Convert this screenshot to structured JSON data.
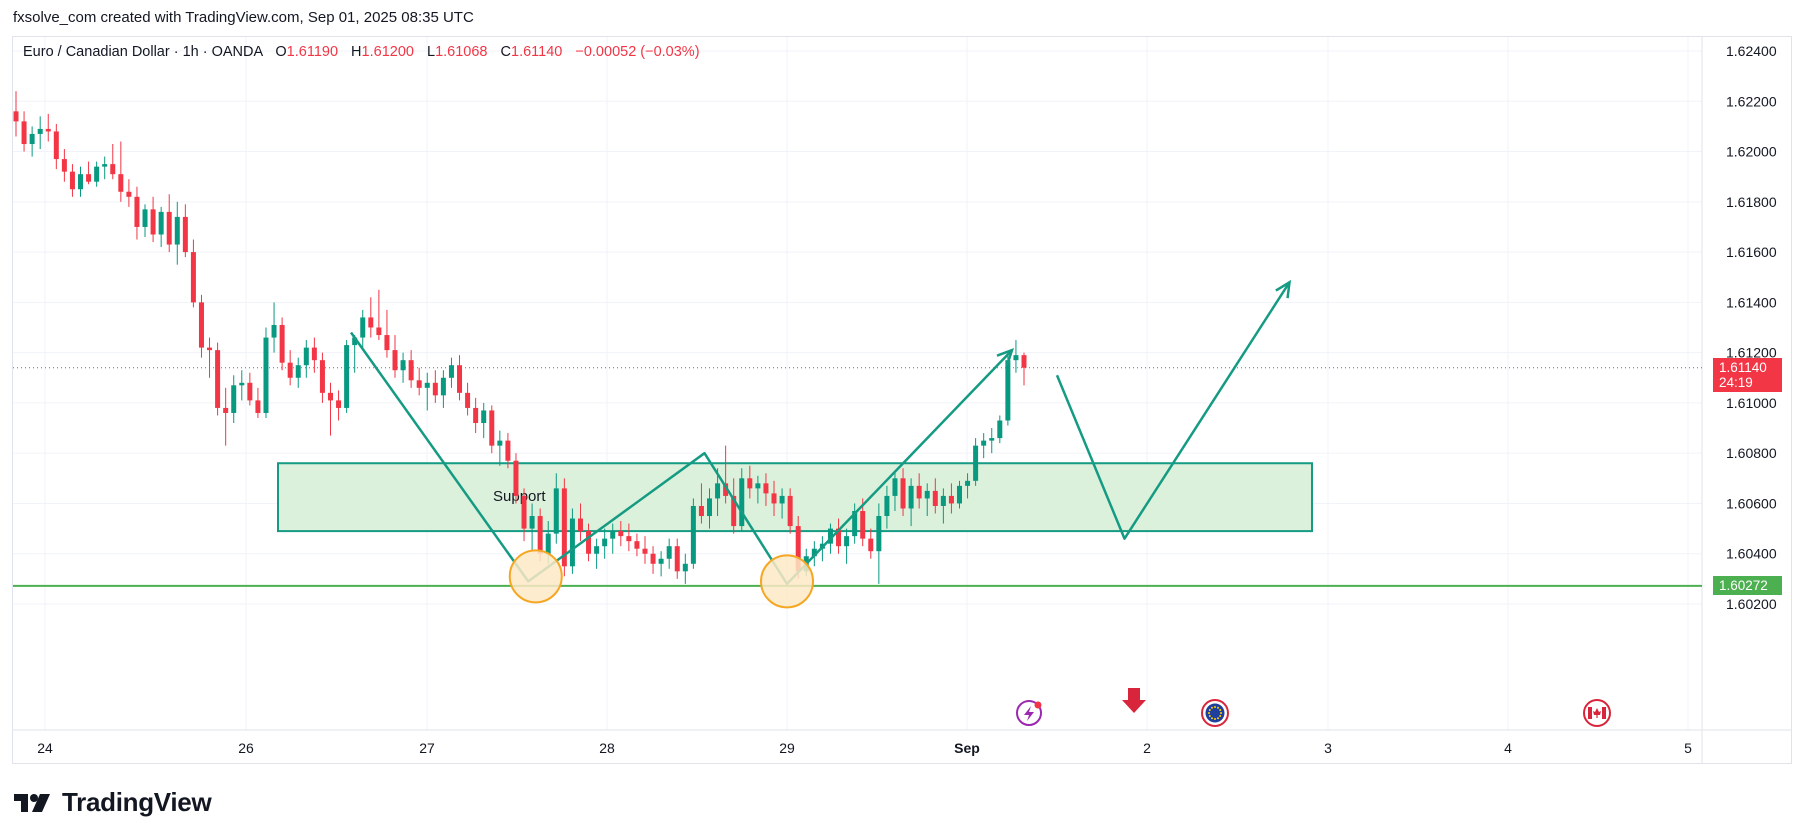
{
  "header": {
    "credit": "fxsolve_com created with TradingView.com, Sep 01, 2025 08:35 UTC"
  },
  "legend": {
    "symbol": "Euro / Canadian Dollar · 1h · OANDA",
    "open_label": "O",
    "open_value": "1.61190",
    "high_label": "H",
    "high_value": "1.61200",
    "low_label": "L",
    "low_value": "1.61068",
    "close_label": "C",
    "close_value": "1.61140",
    "change": "−0.00052 (−0.03%)"
  },
  "price_tags": {
    "last_price": "1.61140",
    "countdown": "24:19",
    "support_line_price": "1.60272"
  },
  "annotations": {
    "zone_label": "Support"
  },
  "footer": {
    "brand": "TradingView"
  },
  "colors": {
    "up": "#089981",
    "down": "#f23645",
    "drawing": "#159b83",
    "zone_fill": "#d9f0d9",
    "support_line": "#4caf50",
    "circle": "#f5a623"
  },
  "event_icons": [
    "lightning-event-icon",
    "down-arrow-event-icon",
    "eu-flag-icon",
    "canada-flag-icon"
  ],
  "chart_data": {
    "type": "candlestick",
    "title": "",
    "price_axis": {
      "ylim": [
        1.601,
        1.625
      ],
      "ticks": [
        "1.62400",
        "1.62200",
        "1.62000",
        "1.61800",
        "1.61600",
        "1.61400",
        "1.61200",
        "1.61000",
        "1.60800",
        "1.60600",
        "1.60400",
        "1.60200"
      ]
    },
    "time_axis": {
      "ticks": [
        {
          "label": "24",
          "x": "Aug 24"
        },
        {
          "label": "26",
          "x": "Aug 26"
        },
        {
          "label": "27",
          "x": "Aug 27"
        },
        {
          "label": "28",
          "x": "Aug 28"
        },
        {
          "label": "29",
          "x": "Aug 29"
        },
        {
          "label": "Sep",
          "x": "Sep 1"
        },
        {
          "label": "2",
          "x": "Sep 2"
        },
        {
          "label": "3",
          "x": "Sep 3"
        },
        {
          "label": "4",
          "x": "Sep 4"
        },
        {
          "label": "5",
          "x": "Sep 5"
        }
      ]
    },
    "last_price": 1.6114,
    "support_level": 1.60272,
    "support_zone": {
      "top": 1.6076,
      "bottom": 1.6049
    },
    "candles": [
      {
        "o": 1.6216,
        "h": 1.6224,
        "l": 1.6206,
        "c": 1.6212
      },
      {
        "o": 1.6212,
        "h": 1.6216,
        "l": 1.62,
        "c": 1.6203
      },
      {
        "o": 1.6203,
        "h": 1.621,
        "l": 1.6198,
        "c": 1.6207
      },
      {
        "o": 1.6207,
        "h": 1.6214,
        "l": 1.6201,
        "c": 1.6209
      },
      {
        "o": 1.6209,
        "h": 1.6215,
        "l": 1.6204,
        "c": 1.6208
      },
      {
        "o": 1.6208,
        "h": 1.6211,
        "l": 1.6193,
        "c": 1.6197
      },
      {
        "o": 1.6197,
        "h": 1.6201,
        "l": 1.6188,
        "c": 1.6192
      },
      {
        "o": 1.6192,
        "h": 1.6195,
        "l": 1.6182,
        "c": 1.6185
      },
      {
        "o": 1.6185,
        "h": 1.6194,
        "l": 1.6182,
        "c": 1.6191
      },
      {
        "o": 1.6191,
        "h": 1.6196,
        "l": 1.6187,
        "c": 1.6188
      },
      {
        "o": 1.6188,
        "h": 1.6196,
        "l": 1.6186,
        "c": 1.6194
      },
      {
        "o": 1.6194,
        "h": 1.6198,
        "l": 1.6189,
        "c": 1.6195
      },
      {
        "o": 1.6195,
        "h": 1.6203,
        "l": 1.6189,
        "c": 1.6191
      },
      {
        "o": 1.6191,
        "h": 1.6204,
        "l": 1.618,
        "c": 1.6184
      },
      {
        "o": 1.6184,
        "h": 1.6189,
        "l": 1.6178,
        "c": 1.6182
      },
      {
        "o": 1.6182,
        "h": 1.6186,
        "l": 1.6165,
        "c": 1.617
      },
      {
        "o": 1.617,
        "h": 1.6179,
        "l": 1.6166,
        "c": 1.6177
      },
      {
        "o": 1.6177,
        "h": 1.6182,
        "l": 1.6164,
        "c": 1.6167
      },
      {
        "o": 1.6167,
        "h": 1.6178,
        "l": 1.6162,
        "c": 1.6176
      },
      {
        "o": 1.6176,
        "h": 1.6183,
        "l": 1.616,
        "c": 1.6163
      },
      {
        "o": 1.6163,
        "h": 1.618,
        "l": 1.6155,
        "c": 1.6174
      },
      {
        "o": 1.6174,
        "h": 1.6179,
        "l": 1.6158,
        "c": 1.616
      },
      {
        "o": 1.616,
        "h": 1.6165,
        "l": 1.6138,
        "c": 1.614
      },
      {
        "o": 1.614,
        "h": 1.6143,
        "l": 1.6118,
        "c": 1.6122
      },
      {
        "o": 1.6122,
        "h": 1.6126,
        "l": 1.611,
        "c": 1.6121
      },
      {
        "o": 1.6121,
        "h": 1.6124,
        "l": 1.6095,
        "c": 1.6098
      },
      {
        "o": 1.6098,
        "h": 1.6106,
        "l": 1.6083,
        "c": 1.6096
      },
      {
        "o": 1.6096,
        "h": 1.6111,
        "l": 1.6092,
        "c": 1.6107
      },
      {
        "o": 1.6107,
        "h": 1.6113,
        "l": 1.6101,
        "c": 1.6108
      },
      {
        "o": 1.6108,
        "h": 1.6112,
        "l": 1.6099,
        "c": 1.6101
      },
      {
        "o": 1.6101,
        "h": 1.6106,
        "l": 1.6094,
        "c": 1.6096
      },
      {
        "o": 1.6096,
        "h": 1.613,
        "l": 1.6094,
        "c": 1.6126
      },
      {
        "o": 1.6126,
        "h": 1.614,
        "l": 1.612,
        "c": 1.6131
      },
      {
        "o": 1.6131,
        "h": 1.6134,
        "l": 1.6113,
        "c": 1.6116
      },
      {
        "o": 1.6116,
        "h": 1.6121,
        "l": 1.6107,
        "c": 1.611
      },
      {
        "o": 1.611,
        "h": 1.6118,
        "l": 1.6106,
        "c": 1.6115
      },
      {
        "o": 1.6115,
        "h": 1.6125,
        "l": 1.611,
        "c": 1.6122
      },
      {
        "o": 1.6122,
        "h": 1.6126,
        "l": 1.6112,
        "c": 1.6117
      },
      {
        "o": 1.6117,
        "h": 1.612,
        "l": 1.61,
        "c": 1.6104
      },
      {
        "o": 1.6104,
        "h": 1.6108,
        "l": 1.6087,
        "c": 1.6101
      },
      {
        "o": 1.6101,
        "h": 1.6105,
        "l": 1.6093,
        "c": 1.6098
      },
      {
        "o": 1.6098,
        "h": 1.6125,
        "l": 1.6096,
        "c": 1.6123
      },
      {
        "o": 1.6123,
        "h": 1.6127,
        "l": 1.6112,
        "c": 1.6126
      },
      {
        "o": 1.6126,
        "h": 1.6137,
        "l": 1.6122,
        "c": 1.6134
      },
      {
        "o": 1.6134,
        "h": 1.6142,
        "l": 1.6126,
        "c": 1.613
      },
      {
        "o": 1.613,
        "h": 1.6145,
        "l": 1.6125,
        "c": 1.6127
      },
      {
        "o": 1.6127,
        "h": 1.6137,
        "l": 1.6118,
        "c": 1.6121
      },
      {
        "o": 1.6121,
        "h": 1.6127,
        "l": 1.611,
        "c": 1.6113
      },
      {
        "o": 1.6113,
        "h": 1.612,
        "l": 1.6108,
        "c": 1.6117
      },
      {
        "o": 1.6117,
        "h": 1.6121,
        "l": 1.6106,
        "c": 1.6109
      },
      {
        "o": 1.6109,
        "h": 1.6114,
        "l": 1.6103,
        "c": 1.6106
      },
      {
        "o": 1.6106,
        "h": 1.6112,
        "l": 1.6097,
        "c": 1.6108
      },
      {
        "o": 1.6108,
        "h": 1.6113,
        "l": 1.61,
        "c": 1.6103
      },
      {
        "o": 1.6103,
        "h": 1.6113,
        "l": 1.6098,
        "c": 1.611
      },
      {
        "o": 1.611,
        "h": 1.6118,
        "l": 1.6106,
        "c": 1.6115
      },
      {
        "o": 1.6115,
        "h": 1.6119,
        "l": 1.6101,
        "c": 1.6104
      },
      {
        "o": 1.6104,
        "h": 1.6108,
        "l": 1.6095,
        "c": 1.6098
      },
      {
        "o": 1.6098,
        "h": 1.6102,
        "l": 1.6088,
        "c": 1.6092
      },
      {
        "o": 1.6092,
        "h": 1.61,
        "l": 1.6086,
        "c": 1.6097
      },
      {
        "o": 1.6097,
        "h": 1.6099,
        "l": 1.608,
        "c": 1.6083
      },
      {
        "o": 1.6083,
        "h": 1.6089,
        "l": 1.6075,
        "c": 1.6085
      },
      {
        "o": 1.6085,
        "h": 1.6088,
        "l": 1.6074,
        "c": 1.6077
      },
      {
        "o": 1.6077,
        "h": 1.608,
        "l": 1.606,
        "c": 1.6063
      },
      {
        "o": 1.6063,
        "h": 1.6066,
        "l": 1.6045,
        "c": 1.605
      },
      {
        "o": 1.605,
        "h": 1.606,
        "l": 1.6041,
        "c": 1.6055
      },
      {
        "o": 1.6055,
        "h": 1.6058,
        "l": 1.6037,
        "c": 1.604
      },
      {
        "o": 1.604,
        "h": 1.6053,
        "l": 1.6036,
        "c": 1.6048
      },
      {
        "o": 1.6048,
        "h": 1.6072,
        "l": 1.6044,
        "c": 1.6066
      },
      {
        "o": 1.6066,
        "h": 1.607,
        "l": 1.6031,
        "c": 1.6035
      },
      {
        "o": 1.6035,
        "h": 1.6058,
        "l": 1.6032,
        "c": 1.6054
      },
      {
        "o": 1.6054,
        "h": 1.606,
        "l": 1.6045,
        "c": 1.6049
      },
      {
        "o": 1.6049,
        "h": 1.6052,
        "l": 1.6037,
        "c": 1.604
      },
      {
        "o": 1.604,
        "h": 1.6046,
        "l": 1.6034,
        "c": 1.6043
      },
      {
        "o": 1.6043,
        "h": 1.605,
        "l": 1.6038,
        "c": 1.6046
      },
      {
        "o": 1.6046,
        "h": 1.6052,
        "l": 1.604,
        "c": 1.6049
      },
      {
        "o": 1.6049,
        "h": 1.6053,
        "l": 1.6043,
        "c": 1.6047
      },
      {
        "o": 1.6047,
        "h": 1.6052,
        "l": 1.6041,
        "c": 1.6045
      },
      {
        "o": 1.6045,
        "h": 1.6048,
        "l": 1.6039,
        "c": 1.6042
      },
      {
        "o": 1.6042,
        "h": 1.6047,
        "l": 1.6036,
        "c": 1.604
      },
      {
        "o": 1.604,
        "h": 1.6043,
        "l": 1.6032,
        "c": 1.6036
      },
      {
        "o": 1.6036,
        "h": 1.6041,
        "l": 1.6031,
        "c": 1.6038
      },
      {
        "o": 1.6038,
        "h": 1.6046,
        "l": 1.6034,
        "c": 1.6043
      },
      {
        "o": 1.6043,
        "h": 1.6046,
        "l": 1.603,
        "c": 1.6033
      },
      {
        "o": 1.6033,
        "h": 1.604,
        "l": 1.6028,
        "c": 1.6036
      },
      {
        "o": 1.6036,
        "h": 1.6062,
        "l": 1.6034,
        "c": 1.6059
      },
      {
        "o": 1.6059,
        "h": 1.6068,
        "l": 1.6052,
        "c": 1.6055
      },
      {
        "o": 1.6055,
        "h": 1.6066,
        "l": 1.605,
        "c": 1.6062
      },
      {
        "o": 1.6062,
        "h": 1.6074,
        "l": 1.6055,
        "c": 1.6068
      },
      {
        "o": 1.6068,
        "h": 1.6083,
        "l": 1.606,
        "c": 1.6063
      },
      {
        "o": 1.6063,
        "h": 1.607,
        "l": 1.6048,
        "c": 1.6051
      },
      {
        "o": 1.6051,
        "h": 1.6074,
        "l": 1.6049,
        "c": 1.607
      },
      {
        "o": 1.607,
        "h": 1.6075,
        "l": 1.6062,
        "c": 1.6066
      },
      {
        "o": 1.6066,
        "h": 1.6071,
        "l": 1.606,
        "c": 1.6068
      },
      {
        "o": 1.6068,
        "h": 1.6072,
        "l": 1.6059,
        "c": 1.6064
      },
      {
        "o": 1.6064,
        "h": 1.6069,
        "l": 1.6055,
        "c": 1.606
      },
      {
        "o": 1.606,
        "h": 1.6066,
        "l": 1.6054,
        "c": 1.6063
      },
      {
        "o": 1.6063,
        "h": 1.6066,
        "l": 1.6048,
        "c": 1.6051
      },
      {
        "o": 1.6051,
        "h": 1.6055,
        "l": 1.603,
        "c": 1.6033
      },
      {
        "o": 1.6033,
        "h": 1.6042,
        "l": 1.6031,
        "c": 1.6039
      },
      {
        "o": 1.6039,
        "h": 1.6045,
        "l": 1.6035,
        "c": 1.6042
      },
      {
        "o": 1.6042,
        "h": 1.6047,
        "l": 1.6037,
        "c": 1.6044
      },
      {
        "o": 1.6044,
        "h": 1.6052,
        "l": 1.604,
        "c": 1.605
      },
      {
        "o": 1.605,
        "h": 1.6054,
        "l": 1.604,
        "c": 1.6043
      },
      {
        "o": 1.6043,
        "h": 1.605,
        "l": 1.6036,
        "c": 1.6047
      },
      {
        "o": 1.6047,
        "h": 1.606,
        "l": 1.6044,
        "c": 1.6057
      },
      {
        "o": 1.6057,
        "h": 1.6062,
        "l": 1.6043,
        "c": 1.6046
      },
      {
        "o": 1.6046,
        "h": 1.605,
        "l": 1.6038,
        "c": 1.6041
      },
      {
        "o": 1.6041,
        "h": 1.606,
        "l": 1.6028,
        "c": 1.6055
      },
      {
        "o": 1.6055,
        "h": 1.6067,
        "l": 1.605,
        "c": 1.6063
      },
      {
        "o": 1.6063,
        "h": 1.6073,
        "l": 1.6057,
        "c": 1.607
      },
      {
        "o": 1.607,
        "h": 1.6074,
        "l": 1.6055,
        "c": 1.6058
      },
      {
        "o": 1.6058,
        "h": 1.607,
        "l": 1.6051,
        "c": 1.6067
      },
      {
        "o": 1.6067,
        "h": 1.6072,
        "l": 1.6058,
        "c": 1.6062
      },
      {
        "o": 1.6062,
        "h": 1.6068,
        "l": 1.6055,
        "c": 1.6065
      },
      {
        "o": 1.6065,
        "h": 1.607,
        "l": 1.6056,
        "c": 1.6059
      },
      {
        "o": 1.6059,
        "h": 1.6066,
        "l": 1.6052,
        "c": 1.6063
      },
      {
        "o": 1.6063,
        "h": 1.6068,
        "l": 1.6056,
        "c": 1.606
      },
      {
        "o": 1.606,
        "h": 1.6069,
        "l": 1.6058,
        "c": 1.6067
      },
      {
        "o": 1.6067,
        "h": 1.6072,
        "l": 1.6062,
        "c": 1.6069
      },
      {
        "o": 1.6069,
        "h": 1.6086,
        "l": 1.6067,
        "c": 1.6083
      },
      {
        "o": 1.6083,
        "h": 1.6088,
        "l": 1.6078,
        "c": 1.6085
      },
      {
        "o": 1.6085,
        "h": 1.609,
        "l": 1.608,
        "c": 1.6086
      },
      {
        "o": 1.6086,
        "h": 1.6095,
        "l": 1.6084,
        "c": 1.6093
      },
      {
        "o": 1.6093,
        "h": 1.612,
        "l": 1.6091,
        "c": 1.6117
      },
      {
        "o": 1.6117,
        "h": 1.6125,
        "l": 1.6112,
        "c": 1.6119
      },
      {
        "o": 1.6119,
        "h": 1.612,
        "l": 1.6107,
        "c": 1.6114
      }
    ],
    "drawings": [
      {
        "type": "polyline",
        "desc": "double-bottom pattern",
        "points": [
          [
            "Aug 26 14:00",
            1.6128
          ],
          [
            "Aug 27 13:30",
            1.6029
          ],
          [
            "Aug 28 13:00",
            1.608
          ],
          [
            "Aug 29 00:00",
            1.6028
          ],
          [
            "Sep 1 06:00",
            1.6121
          ]
        ]
      },
      {
        "type": "projection",
        "desc": "retest then rally",
        "points": [
          [
            "Sep 1 12:00",
            1.6111
          ],
          [
            "Sep 1 21:00",
            1.6046
          ],
          [
            "Sep 2 19:00",
            1.6148
          ]
        ]
      },
      {
        "type": "circle",
        "at": [
          "Aug 27 14:30",
          1.6031
        ]
      },
      {
        "type": "circle",
        "at": [
          "Aug 29 00:00",
          1.6029
        ]
      }
    ]
  }
}
